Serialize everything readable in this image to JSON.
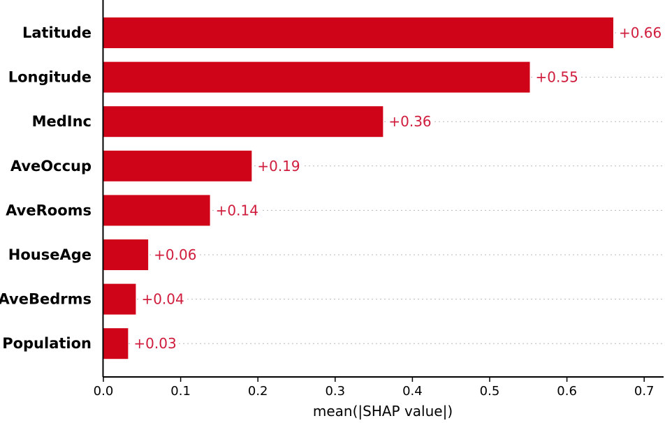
{
  "chart_data": {
    "type": "bar",
    "orientation": "horizontal",
    "title": "",
    "xlabel": "mean(|SHAP value|)",
    "ylabel": "",
    "xlim": [
      0,
      0.72
    ],
    "xticks": [
      "0.0",
      "0.1",
      "0.2",
      "0.3",
      "0.4",
      "0.5",
      "0.6",
      "0.7"
    ],
    "grid": "dotted row guides",
    "legend": "none",
    "bar_color": "#d00418",
    "label_color": "#d01c3c",
    "categories": [
      "Latitude",
      "Longitude",
      "MedInc",
      "AveOccup",
      "AveRooms",
      "HouseAge",
      "AveBedrms",
      "Population"
    ],
    "values": [
      0.66,
      0.552,
      0.362,
      0.192,
      0.138,
      0.058,
      0.042,
      0.032
    ],
    "value_labels": [
      "+0.66",
      "+0.55",
      "+0.36",
      "+0.19",
      "+0.14",
      "+0.06",
      "+0.04",
      "+0.03"
    ]
  }
}
